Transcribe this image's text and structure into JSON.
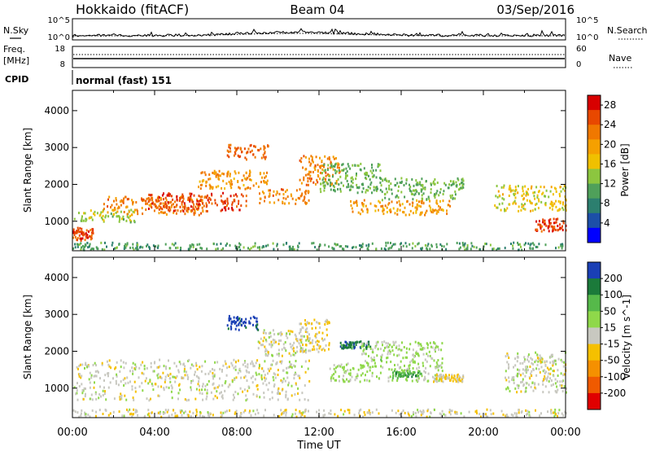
{
  "header": {
    "station": "Hokkaido (fitACF)",
    "beam": "Beam 04",
    "date": "03/Sep/2016"
  },
  "strip_panels": {
    "nsky_label": "N.Sky",
    "nsearch_label": "N.Search",
    "noise_ticks_left": [
      "10^5",
      "10^0"
    ],
    "noise_ticks_right": [
      "10^5",
      "10^0"
    ],
    "freq_label_line1": "Freq.",
    "freq_label_line2": "[MHz]",
    "freq_ticks": [
      "18",
      "8"
    ],
    "nave_label": "Nave",
    "nave_ticks": [
      "60",
      "0"
    ],
    "cpid_label": "CPID",
    "cpid_value": "normal (fast) 151"
  },
  "colors": {
    "power_scale": [
      "#0000ff",
      "#1c4fa8",
      "#2c7f6f",
      "#4fa05a",
      "#8cc63f",
      "#f0c000",
      "#f5a000",
      "#f07800",
      "#e84800",
      "#d80000"
    ],
    "velocity_scale": [
      "#1a3fb5",
      "#1b7a3a",
      "#56b94a",
      "#8fd84a",
      "#c8c8c0",
      "#f5c000",
      "#f59000",
      "#f05a00",
      "#e00000"
    ],
    "ground_gray": "#c8c8c0"
  },
  "chart_data": [
    {
      "type": "heatmap",
      "name": "Power",
      "ylabel": "Slant Range [km]",
      "yticks": [
        1000,
        2000,
        3000,
        4000
      ],
      "ylim": [
        200,
        4550
      ],
      "xlim": [
        "00:00",
        "24:00"
      ],
      "colorbar_label": "Power [dB]",
      "colorbar_ticks": [
        4,
        8,
        12,
        16,
        20,
        24,
        28
      ],
      "colorbar_range": [
        0,
        30
      ],
      "bands": [
        {
          "start": 0.0,
          "end": 1.0,
          "range": [
            500,
            850
          ],
          "value": 26
        },
        {
          "start": 0.0,
          "end": 3.0,
          "range": [
            1000,
            1350
          ],
          "value": 14
        },
        {
          "start": 1.5,
          "end": 6.5,
          "range": [
            1200,
            1700
          ],
          "value": 22
        },
        {
          "start": 3.5,
          "end": 8.5,
          "range": [
            1300,
            1800
          ],
          "value": 26
        },
        {
          "start": 6.0,
          "end": 9.5,
          "range": [
            1900,
            2400
          ],
          "value": 20
        },
        {
          "start": 7.5,
          "end": 9.5,
          "range": [
            2700,
            3100
          ],
          "value": 24
        },
        {
          "start": 9.0,
          "end": 11.5,
          "range": [
            1500,
            1900
          ],
          "value": 22
        },
        {
          "start": 11.0,
          "end": 13.0,
          "range": [
            2000,
            2800
          ],
          "value": 22
        },
        {
          "start": 12.0,
          "end": 15.0,
          "range": [
            1800,
            2600
          ],
          "value": 12
        },
        {
          "start": 13.5,
          "end": 18.5,
          "range": [
            1200,
            1600
          ],
          "value": 20
        },
        {
          "start": 15.0,
          "end": 19.0,
          "range": [
            1600,
            2200
          ],
          "value": 12
        },
        {
          "start": 20.5,
          "end": 24.0,
          "range": [
            1300,
            2000
          ],
          "value": 16
        },
        {
          "start": 22.5,
          "end": 24.0,
          "range": [
            750,
            1100
          ],
          "value": 26
        },
        {
          "start": 0.0,
          "end": 24.0,
          "range": [
            250,
            450
          ],
          "value": 10
        }
      ]
    },
    {
      "type": "heatmap",
      "name": "Velocity",
      "ylabel": "Slant Range [km]",
      "yticks": [
        1000,
        2000,
        3000,
        4000
      ],
      "ylim": [
        200,
        4550
      ],
      "xlim": [
        "00:00",
        "24:00"
      ],
      "xlabel": "Time UT",
      "xticks": [
        "00:00",
        "04:00",
        "08:00",
        "12:00",
        "16:00",
        "20:00",
        "00:00"
      ],
      "colorbar_label": "Velocity [m s^-1]",
      "colorbar_ticks": [
        200,
        100,
        50,
        15,
        -15,
        -50,
        -100,
        -200
      ],
      "colorbar_range": [
        -250,
        250
      ],
      "bands": [
        {
          "start": 0.0,
          "end": 11.5,
          "range": [
            700,
            1800
          ],
          "value": 0
        },
        {
          "start": 7.5,
          "end": 9.0,
          "range": [
            2600,
            3000
          ],
          "value": 220
        },
        {
          "start": 9.0,
          "end": 11.5,
          "range": [
            1900,
            2600
          ],
          "value": 0
        },
        {
          "start": 11.0,
          "end": 12.5,
          "range": [
            2000,
            2900
          ],
          "value": -30
        },
        {
          "start": 13.0,
          "end": 14.5,
          "range": [
            2100,
            2300
          ],
          "value": 180
        },
        {
          "start": 12.5,
          "end": 18.0,
          "range": [
            1200,
            1700
          ],
          "value": 40
        },
        {
          "start": 14.0,
          "end": 18.0,
          "range": [
            1700,
            2300
          ],
          "value": 40
        },
        {
          "start": 15.5,
          "end": 17.0,
          "range": [
            1300,
            1500
          ],
          "value": 120
        },
        {
          "start": 17.5,
          "end": 19.0,
          "range": [
            1200,
            1400
          ],
          "value": -40
        },
        {
          "start": 21.0,
          "end": 24.0,
          "range": [
            900,
            2000
          ],
          "value": 0
        },
        {
          "start": 0.0,
          "end": 24.0,
          "range": [
            250,
            450
          ],
          "value": -10
        }
      ]
    }
  ]
}
